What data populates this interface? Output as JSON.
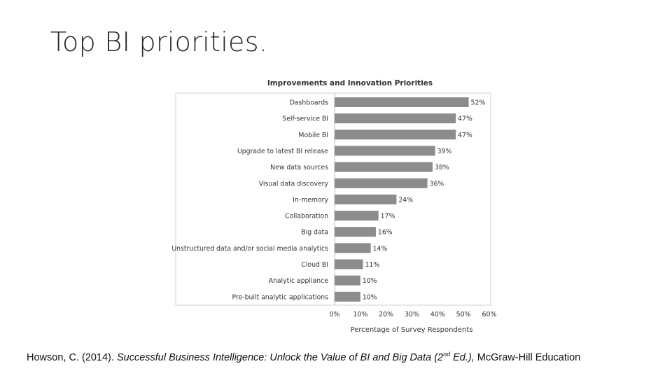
{
  "slide": {
    "title": "Top BI priorities."
  },
  "chart_data": {
    "type": "bar",
    "orientation": "horizontal",
    "title": "Improvements and Innovation Priorities",
    "xlabel": "Percentage of Survey Respondents",
    "ylabel": "",
    "xlim": [
      0,
      60
    ],
    "ticks": [
      "0%",
      "10%",
      "20%",
      "30%",
      "40%",
      "50%",
      "60%"
    ],
    "tick_values": [
      0,
      10,
      20,
      30,
      40,
      50,
      60
    ],
    "grid": false,
    "bar_color": "#8c8c8d",
    "categories": [
      "Dashboards",
      "Self-service BI",
      "Mobile BI",
      "Upgrade to latest BI release",
      "New data sources",
      "Visual data discovery",
      "In-memory",
      "Collaboration",
      "Big data",
      "Unstructured data and/or social media analytics",
      "Cloud BI",
      "Analytic appliance",
      "Pre-built analytic applications"
    ],
    "values": [
      52,
      47,
      47,
      39,
      38,
      36,
      24,
      17,
      16,
      14,
      11,
      10,
      10
    ],
    "value_labels": [
      "52%",
      "47%",
      "47%",
      "39%",
      "38%",
      "36%",
      "24%",
      "17%",
      "16%",
      "14%",
      "11%",
      "10%",
      "10%"
    ]
  },
  "citation": {
    "authors": "Howson, C. (2014). ",
    "book_title": "Successful Business Intelligence: Unlock the Value of BI and Big Data (2",
    "edition_sup": "nd",
    "edition_rest": " Ed.),",
    "publisher": " McGraw-Hill Education"
  }
}
